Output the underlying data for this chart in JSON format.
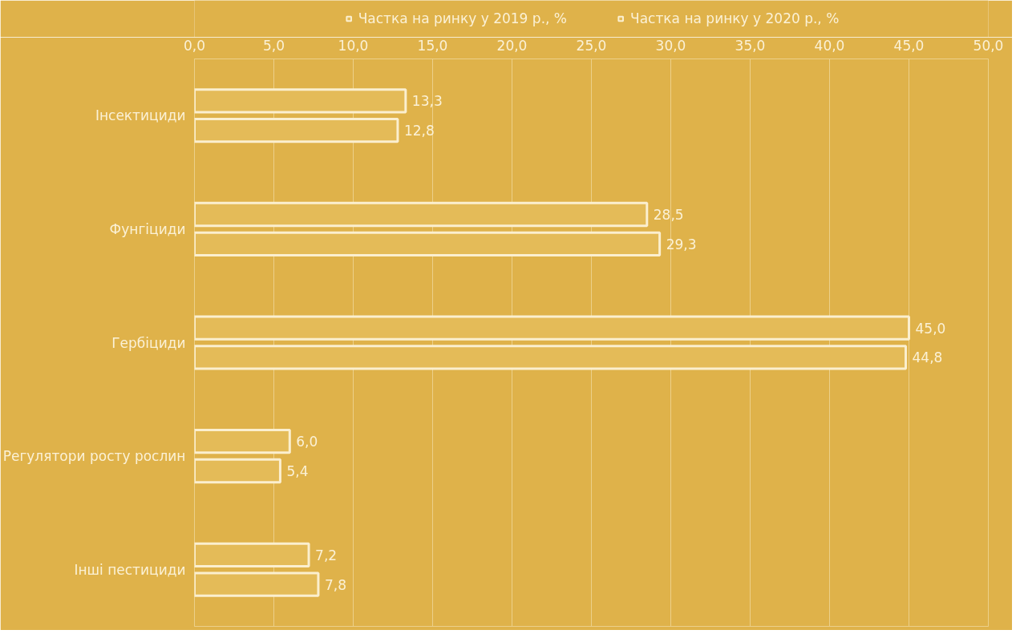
{
  "chart_data": {
    "type": "bar",
    "orientation": "horizontal",
    "categories": [
      "Інсектициди",
      "Фунгіциди",
      "Гербіциди",
      "Регулятори росту рослин",
      "Інші пестициди"
    ],
    "series": [
      {
        "name": "Частка на ринку у 2019 р., %",
        "color": "#e4bb58",
        "values": [
          13.3,
          28.5,
          45.0,
          6.0,
          7.2
        ],
        "value_labels": [
          "13,3",
          "28,5",
          "45,0",
          "6,0",
          "7,2"
        ]
      },
      {
        "name": "Частка на ринку у 2020 р., %",
        "color": "#e4bb58",
        "values": [
          12.8,
          29.3,
          44.8,
          5.4,
          7.8
        ],
        "value_labels": [
          "12,8",
          "29,3",
          "44,8",
          "5,4",
          "7,8"
        ]
      }
    ],
    "xlim": [
      0,
      50
    ],
    "xticks": [
      {
        "value": 0,
        "label": "0,0"
      },
      {
        "value": 5,
        "label": "5,0"
      },
      {
        "value": 10,
        "label": "10,0"
      },
      {
        "value": 15,
        "label": "15,0"
      },
      {
        "value": 20,
        "label": "20,0"
      },
      {
        "value": 25,
        "label": "25,0"
      },
      {
        "value": 30,
        "label": "30,0"
      },
      {
        "value": 35,
        "label": "35,0"
      },
      {
        "value": 40,
        "label": "40,0"
      },
      {
        "value": 45,
        "label": "45,0"
      },
      {
        "value": 50,
        "label": "50,0"
      }
    ],
    "grid": "x",
    "legend": "top"
  }
}
